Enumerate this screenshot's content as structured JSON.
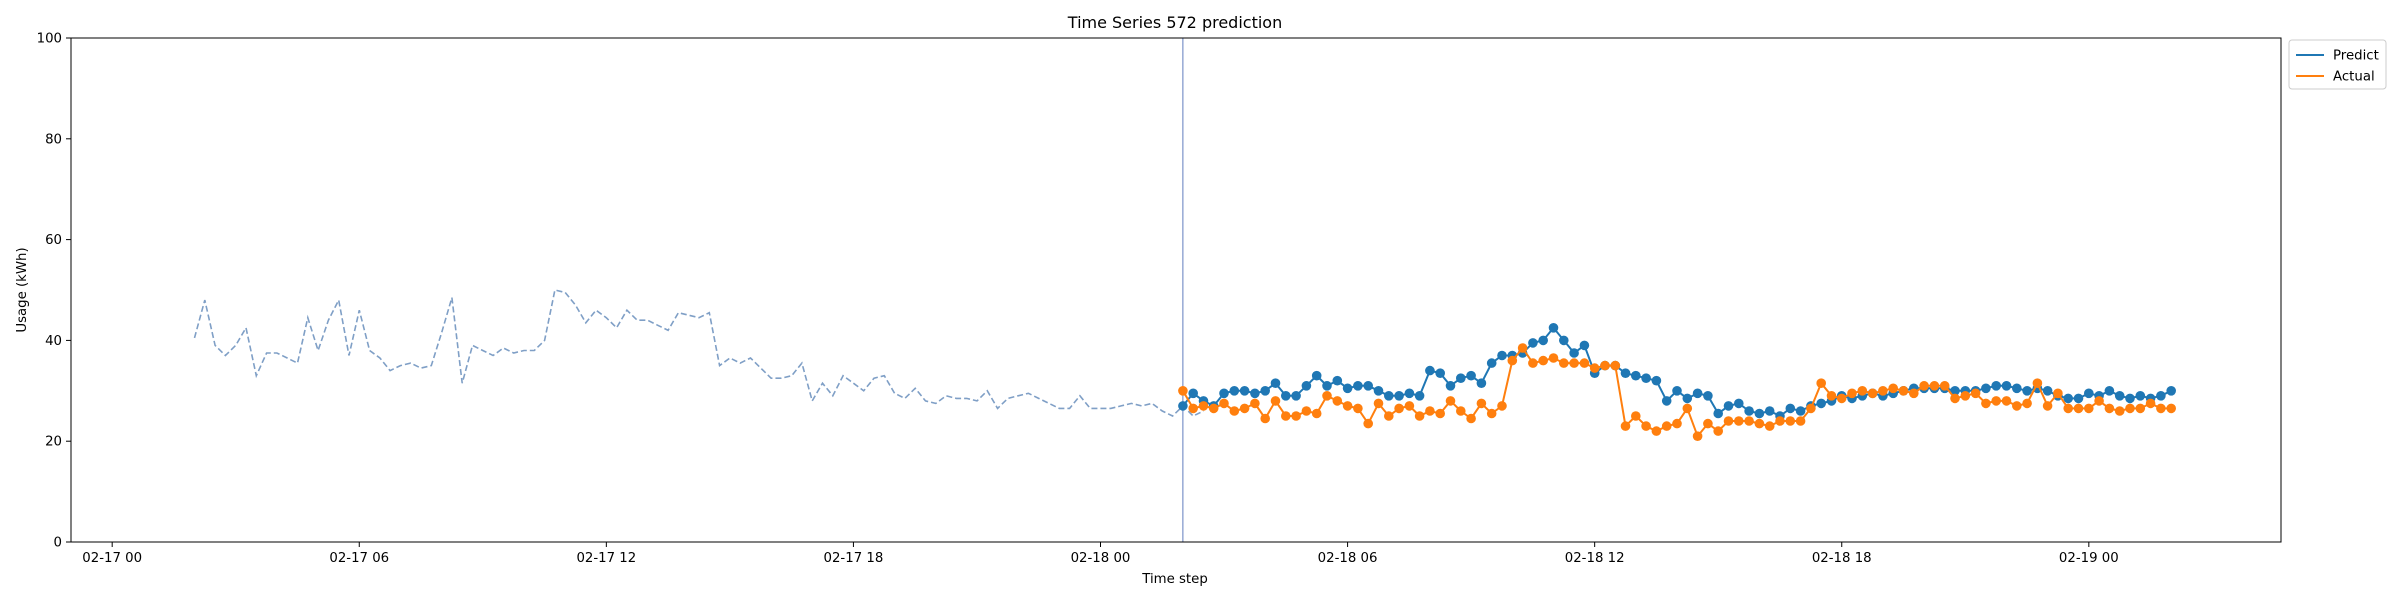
{
  "chart_data": {
    "type": "line",
    "title": "Time Series 572 prediction",
    "xlabel": "Time step",
    "ylabel": "Usage (kWh)",
    "ylim": [
      0,
      100
    ],
    "yticks": [
      0,
      20,
      40,
      60,
      80,
      100
    ],
    "xlim": [
      "2017-02-16T23:00",
      "2017-02-19T04:40"
    ],
    "xticks": [
      {
        "t": "2017-02-17T00:00",
        "label": "02-17 00"
      },
      {
        "t": "2017-02-17T06:00",
        "label": "02-17 06"
      },
      {
        "t": "2017-02-17T12:00",
        "label": "02-17 12"
      },
      {
        "t": "2017-02-17T18:00",
        "label": "02-17 18"
      },
      {
        "t": "2017-02-18T00:00",
        "label": "02-18 00"
      },
      {
        "t": "2017-02-18T06:00",
        "label": "02-18 06"
      },
      {
        "t": "2017-02-18T12:00",
        "label": "02-18 12"
      },
      {
        "t": "2017-02-18T18:00",
        "label": "02-18 18"
      },
      {
        "t": "2017-02-19T00:00",
        "label": "02-19 00"
      }
    ],
    "forecast_start": "2017-02-18T02:00",
    "series": [
      {
        "name": "Predict",
        "color": "#1f77b4",
        "start": "2017-02-18T02:00",
        "step_minutes": 15,
        "values": [
          27.0,
          29.5,
          28.0,
          27.0,
          29.5,
          30.0,
          30.0,
          29.5,
          30.0,
          31.5,
          29.0,
          29.0,
          31.0,
          33.0,
          31.0,
          32.0,
          30.5,
          31.0,
          31.0,
          30.0,
          29.0,
          29.0,
          29.5,
          29.0,
          34.0,
          33.5,
          31.0,
          32.5,
          33.0,
          31.5,
          35.5,
          37.0,
          37.0,
          37.5,
          39.5,
          40.0,
          42.5,
          40.0,
          37.5,
          39.0,
          33.5,
          35.0,
          35.0,
          33.5,
          33.0,
          32.5,
          32.0,
          28.0,
          30.0,
          28.5,
          29.5,
          29.0,
          25.5,
          27.0,
          27.5,
          26.0,
          25.5,
          26.0,
          25.0,
          26.5,
          26.0,
          27.0,
          27.5,
          28.0,
          29.0,
          28.5,
          29.0,
          29.5,
          29.0,
          29.5,
          30.0,
          30.5,
          30.5,
          30.5,
          30.5,
          30.0,
          30.0,
          30.0,
          30.5,
          31.0,
          31.0,
          30.5,
          30.0,
          30.5,
          30.0,
          29.0,
          28.5,
          28.5,
          29.5,
          29.0,
          30.0,
          29.0,
          28.5,
          29.0,
          28.5,
          29.0,
          30.0
        ]
      },
      {
        "name": "Actual",
        "color": "#ff7f0e",
        "start": "2017-02-18T02:00",
        "step_minutes": 15,
        "values": [
          30.0,
          26.5,
          27.0,
          26.5,
          27.5,
          26.0,
          26.5,
          27.5,
          24.5,
          28.0,
          25.0,
          25.0,
          26.0,
          25.5,
          29.0,
          28.0,
          27.0,
          26.5,
          23.5,
          27.5,
          25.0,
          26.5,
          27.0,
          25.0,
          26.0,
          25.5,
          28.0,
          26.0,
          24.5,
          27.5,
          25.5,
          27.0,
          36.0,
          38.5,
          35.5,
          36.0,
          36.5,
          35.5,
          35.5,
          35.5,
          34.5,
          35.0,
          35.0,
          23.0,
          25.0,
          23.0,
          22.0,
          23.0,
          23.5,
          26.5,
          21.0,
          23.5,
          22.0,
          24.0,
          24.0,
          24.0,
          23.5,
          23.0,
          24.0,
          24.0,
          24.0,
          26.5,
          31.5,
          29.0,
          28.5,
          29.5,
          30.0,
          29.5,
          30.0,
          30.5,
          30.0,
          29.5,
          31.0,
          31.0,
          31.0,
          28.5,
          29.0,
          29.5,
          27.5,
          28.0,
          28.0,
          27.0,
          27.5,
          31.5,
          27.0,
          29.5,
          26.5,
          26.5,
          26.5,
          28.0,
          26.5,
          26.0,
          26.5,
          26.5,
          27.5,
          26.5,
          26.5
        ]
      },
      {
        "name": "",
        "color": "#7f9fc6",
        "style": "dashed",
        "start": "2017-02-17T02:00",
        "step_minutes": 15,
        "values": [
          40.5,
          48.0,
          39.0,
          37.0,
          39.0,
          42.5,
          33.0,
          37.5,
          37.5,
          36.5,
          35.5,
          44.5,
          38.0,
          44.0,
          48.0,
          37.0,
          46.0,
          38.0,
          36.5,
          34.0,
          35.0,
          35.5,
          34.5,
          35.0,
          41.5,
          48.5,
          31.5,
          39.0,
          38.0,
          37.0,
          38.5,
          37.5,
          38.0,
          38.0,
          40.0,
          50.0,
          49.5,
          47.0,
          43.5,
          46.0,
          44.5,
          42.5,
          46.0,
          44.0,
          44.0,
          43.0,
          42.0,
          45.5,
          45.0,
          44.5,
          45.5,
          35.0,
          36.5,
          35.5,
          36.5,
          34.5,
          32.5,
          32.5,
          33.0,
          35.5,
          28.0,
          31.5,
          29.0,
          33.0,
          31.5,
          30.0,
          32.5,
          33.0,
          29.5,
          28.5,
          30.5,
          28.0,
          27.5,
          29.0,
          28.5,
          28.5,
          28.0,
          30.0,
          26.5,
          28.5,
          29.0,
          29.5,
          28.5,
          27.5,
          26.5,
          26.5,
          29.0,
          26.5,
          26.5,
          26.5,
          27.0,
          27.5,
          27.0,
          27.5,
          26.0,
          25.0,
          27.0,
          25.0,
          26.0
        ]
      }
    ],
    "legend": {
      "placement": "outside-top-right",
      "entries": [
        "Predict",
        "Actual"
      ]
    }
  }
}
